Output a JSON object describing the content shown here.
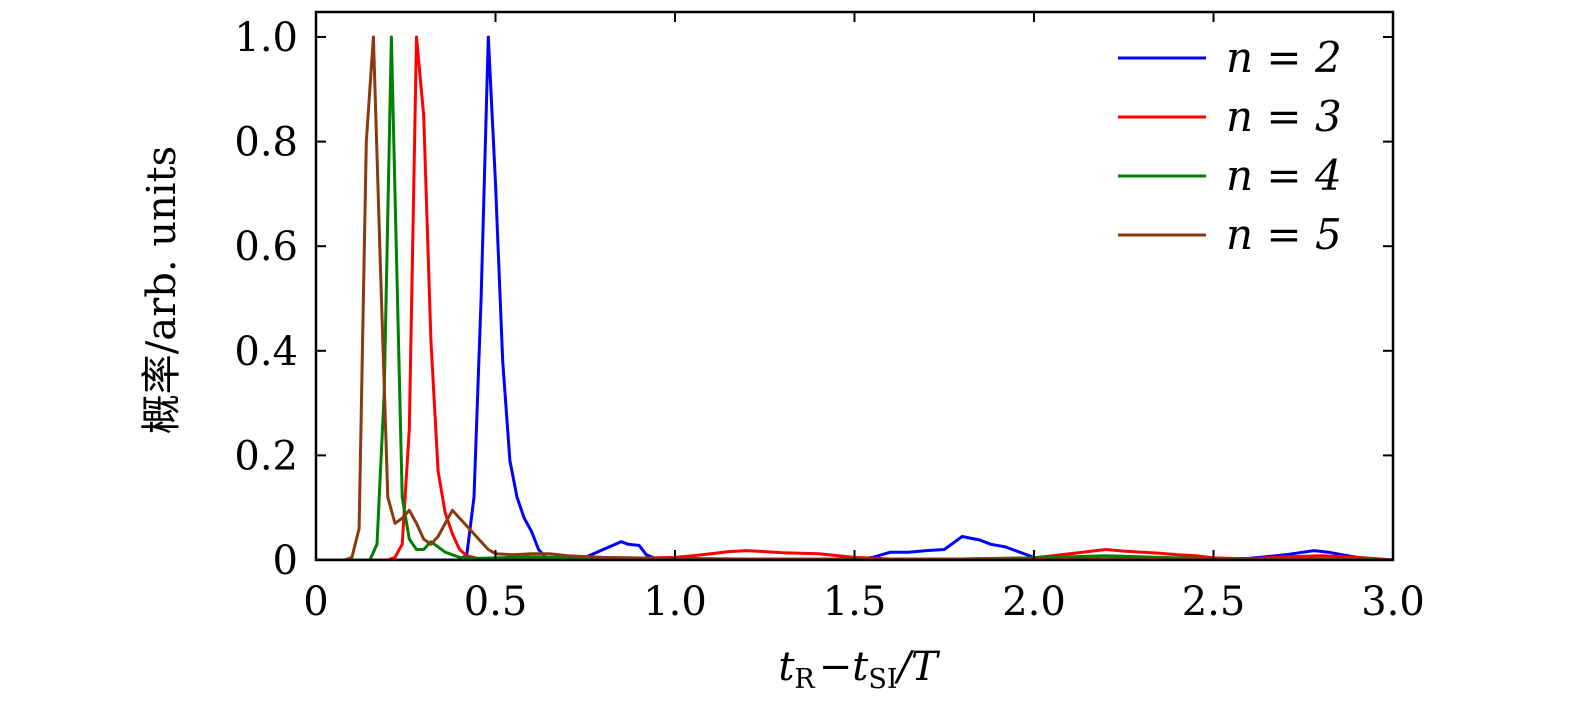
{
  "chart_data": {
    "type": "line",
    "xlabel": "t_R − t_SI/T",
    "xlabel_parts": {
      "t": "t",
      "sub_r": "R",
      "minus": "−",
      "t2": "t",
      "sub_si": "SI",
      "rest": "/T"
    },
    "ylabel": "概率/arb. units",
    "xlim": [
      0,
      3.0
    ],
    "ylim": [
      0,
      1.05
    ],
    "xticks": [
      0,
      0.5,
      1.0,
      1.5,
      2.0,
      2.5,
      3.0
    ],
    "xtick_labels": [
      "0",
      "0.5",
      "1.0",
      "1.5",
      "2.0",
      "2.5",
      "3.0"
    ],
    "yticks": [
      0,
      0.2,
      0.4,
      0.6,
      0.8,
      1.0
    ],
    "ytick_labels": [
      "0",
      "0.2",
      "0.4",
      "0.6",
      "0.8",
      "1.0"
    ],
    "grid": false,
    "legend_position": "top-right",
    "series": [
      {
        "name": "n = 2",
        "color": "#0000ff",
        "x": [
          0,
          0.4,
          0.42,
          0.44,
          0.46,
          0.48,
          0.5,
          0.52,
          0.54,
          0.56,
          0.58,
          0.6,
          0.62,
          0.64,
          0.66,
          0.68,
          0.7,
          0.75,
          0.8,
          0.85,
          0.87,
          0.9,
          0.92,
          0.95,
          1.0,
          1.1,
          1.2,
          1.4,
          1.5,
          1.55,
          1.6,
          1.65,
          1.7,
          1.75,
          1.78,
          1.8,
          1.85,
          1.88,
          1.92,
          2.0,
          2.1,
          2.3,
          2.5,
          2.6,
          2.7,
          2.75,
          2.78,
          2.82,
          2.86,
          2.9,
          3.0
        ],
        "y": [
          0,
          0.0,
          0.01,
          0.12,
          0.5,
          1.0,
          0.72,
          0.38,
          0.19,
          0.12,
          0.08,
          0.055,
          0.02,
          0.005,
          0.0,
          0.0,
          0.0,
          0.005,
          0.02,
          0.035,
          0.03,
          0.028,
          0.01,
          0.002,
          0.0,
          0.0,
          0.0,
          0.0,
          0.0,
          0.005,
          0.015,
          0.015,
          0.018,
          0.02,
          0.035,
          0.045,
          0.038,
          0.03,
          0.025,
          0.005,
          0.002,
          0.002,
          0.002,
          0.003,
          0.01,
          0.015,
          0.018,
          0.015,
          0.01,
          0.005,
          0.0
        ]
      },
      {
        "name": "n = 3",
        "color": "#ff0000",
        "x": [
          0,
          0.2,
          0.22,
          0.24,
          0.26,
          0.28,
          0.3,
          0.32,
          0.34,
          0.36,
          0.38,
          0.4,
          0.42,
          0.45,
          0.5,
          0.6,
          0.8,
          1.0,
          1.05,
          1.1,
          1.15,
          1.2,
          1.25,
          1.3,
          1.4,
          1.5,
          1.6,
          1.8,
          2.0,
          2.1,
          2.15,
          2.2,
          2.25,
          2.3,
          2.35,
          2.4,
          2.45,
          2.5,
          2.6,
          2.7,
          2.8,
          2.9,
          3.0
        ],
        "y": [
          0,
          0.0,
          0.005,
          0.03,
          0.25,
          1.0,
          0.85,
          0.42,
          0.17,
          0.09,
          0.05,
          0.02,
          0.008,
          0.003,
          0.002,
          0.003,
          0.002,
          0.005,
          0.008,
          0.012,
          0.016,
          0.018,
          0.016,
          0.014,
          0.012,
          0.005,
          0.002,
          0.002,
          0.004,
          0.012,
          0.016,
          0.02,
          0.017,
          0.015,
          0.013,
          0.01,
          0.008,
          0.004,
          0.002,
          0.006,
          0.008,
          0.005,
          0.0
        ]
      },
      {
        "name": "n = 4",
        "color": "#007f00",
        "x": [
          0,
          0.15,
          0.17,
          0.19,
          0.21,
          0.22,
          0.24,
          0.26,
          0.28,
          0.3,
          0.32,
          0.34,
          0.36,
          0.38,
          0.4,
          0.45,
          0.5,
          0.6,
          0.8,
          1.0,
          1.2,
          1.5,
          1.8,
          2.0,
          2.2,
          2.4,
          2.6,
          2.8,
          3.0
        ],
        "y": [
          0,
          0.0,
          0.03,
          0.32,
          1.0,
          0.7,
          0.12,
          0.04,
          0.02,
          0.02,
          0.035,
          0.025,
          0.015,
          0.01,
          0.005,
          0.003,
          0.004,
          0.006,
          0.003,
          0.002,
          0.002,
          0.002,
          0.002,
          0.004,
          0.008,
          0.004,
          0.002,
          0.002,
          0.0
        ]
      },
      {
        "name": "n = 5",
        "color": "#8b3a0f",
        "x": [
          0,
          0.05,
          0.08,
          0.1,
          0.12,
          0.14,
          0.16,
          0.18,
          0.2,
          0.22,
          0.24,
          0.26,
          0.28,
          0.3,
          0.32,
          0.34,
          0.36,
          0.38,
          0.4,
          0.42,
          0.44,
          0.46,
          0.48,
          0.5,
          0.55,
          0.6,
          0.65,
          0.7,
          0.8,
          1.0,
          1.2,
          1.5,
          2.0,
          2.5,
          3.0
        ],
        "y": [
          0,
          0.0,
          0.0,
          0.005,
          0.06,
          0.8,
          1.0,
          0.55,
          0.12,
          0.07,
          0.08,
          0.095,
          0.07,
          0.04,
          0.03,
          0.045,
          0.07,
          0.095,
          0.08,
          0.065,
          0.05,
          0.035,
          0.02,
          0.012,
          0.01,
          0.012,
          0.012,
          0.008,
          0.005,
          0.003,
          0.002,
          0.002,
          0.002,
          0.002,
          0.0
        ]
      }
    ]
  }
}
